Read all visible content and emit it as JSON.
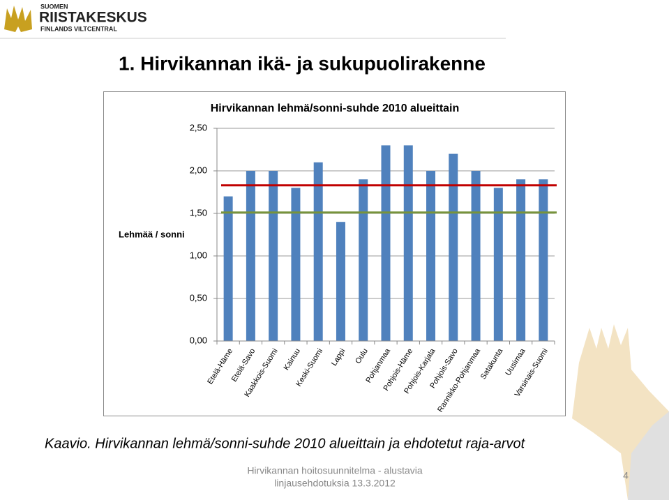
{
  "logo": {
    "line1": "SUOMEN",
    "line2": "RIISTAKESKUS",
    "line3": "FINLANDS VILTCENTRAL"
  },
  "slide_title": "1. Hirvikannan ikä- ja sukupuolirakenne",
  "chart_data": {
    "type": "bar",
    "title": "Hirvikannan lehmä/sonni-suhde 2010 alueittain",
    "y_label": "Lehmää / sonni",
    "categories": [
      "Etelä-Häme",
      "Etelä-Savo",
      "Kaakkois-Suomi",
      "Kainuu",
      "Keski-Suomi",
      "Lappi",
      "Oulu",
      "Pohjanmaa",
      "Pohjois-Häme",
      "Pohjois-Karjala",
      "Pohjois-Savo",
      "Rannikko-Pohjanmaa",
      "Satakunta",
      "Uusimaa",
      "Varsinais-Suomi"
    ],
    "values": [
      1.7,
      2.0,
      2.0,
      1.8,
      2.1,
      1.4,
      1.9,
      2.3,
      2.3,
      2.0,
      2.2,
      2.0,
      1.8,
      1.9,
      1.9
    ],
    "color": "#4f81bd",
    "ylim": [
      0,
      2.5
    ],
    "yticks": [
      {
        "value": 0,
        "label": "0,00"
      },
      {
        "value": 0.5,
        "label": "0,50"
      },
      {
        "value": 1,
        "label": "1,00"
      },
      {
        "value": 1.5,
        "label": "1,50"
      },
      {
        "value": 2,
        "label": "2,00"
      },
      {
        "value": 2.5,
        "label": "2,50"
      }
    ],
    "grid": true,
    "reference_lines": [
      {
        "value": 1.83,
        "color": "#c00000"
      },
      {
        "value": 1.51,
        "color": "#77933c"
      }
    ]
  },
  "caption": "Kaavio. Hirvikannan lehmä/sonni-suhde 2010 alueittain ja ehdotetut raja-arvot",
  "footer": {
    "line1": "Hirvikannan hoitosuunnitelma - alustavia",
    "line2": "linjausehdotuksia 13.3.2012"
  },
  "page_number": "4"
}
